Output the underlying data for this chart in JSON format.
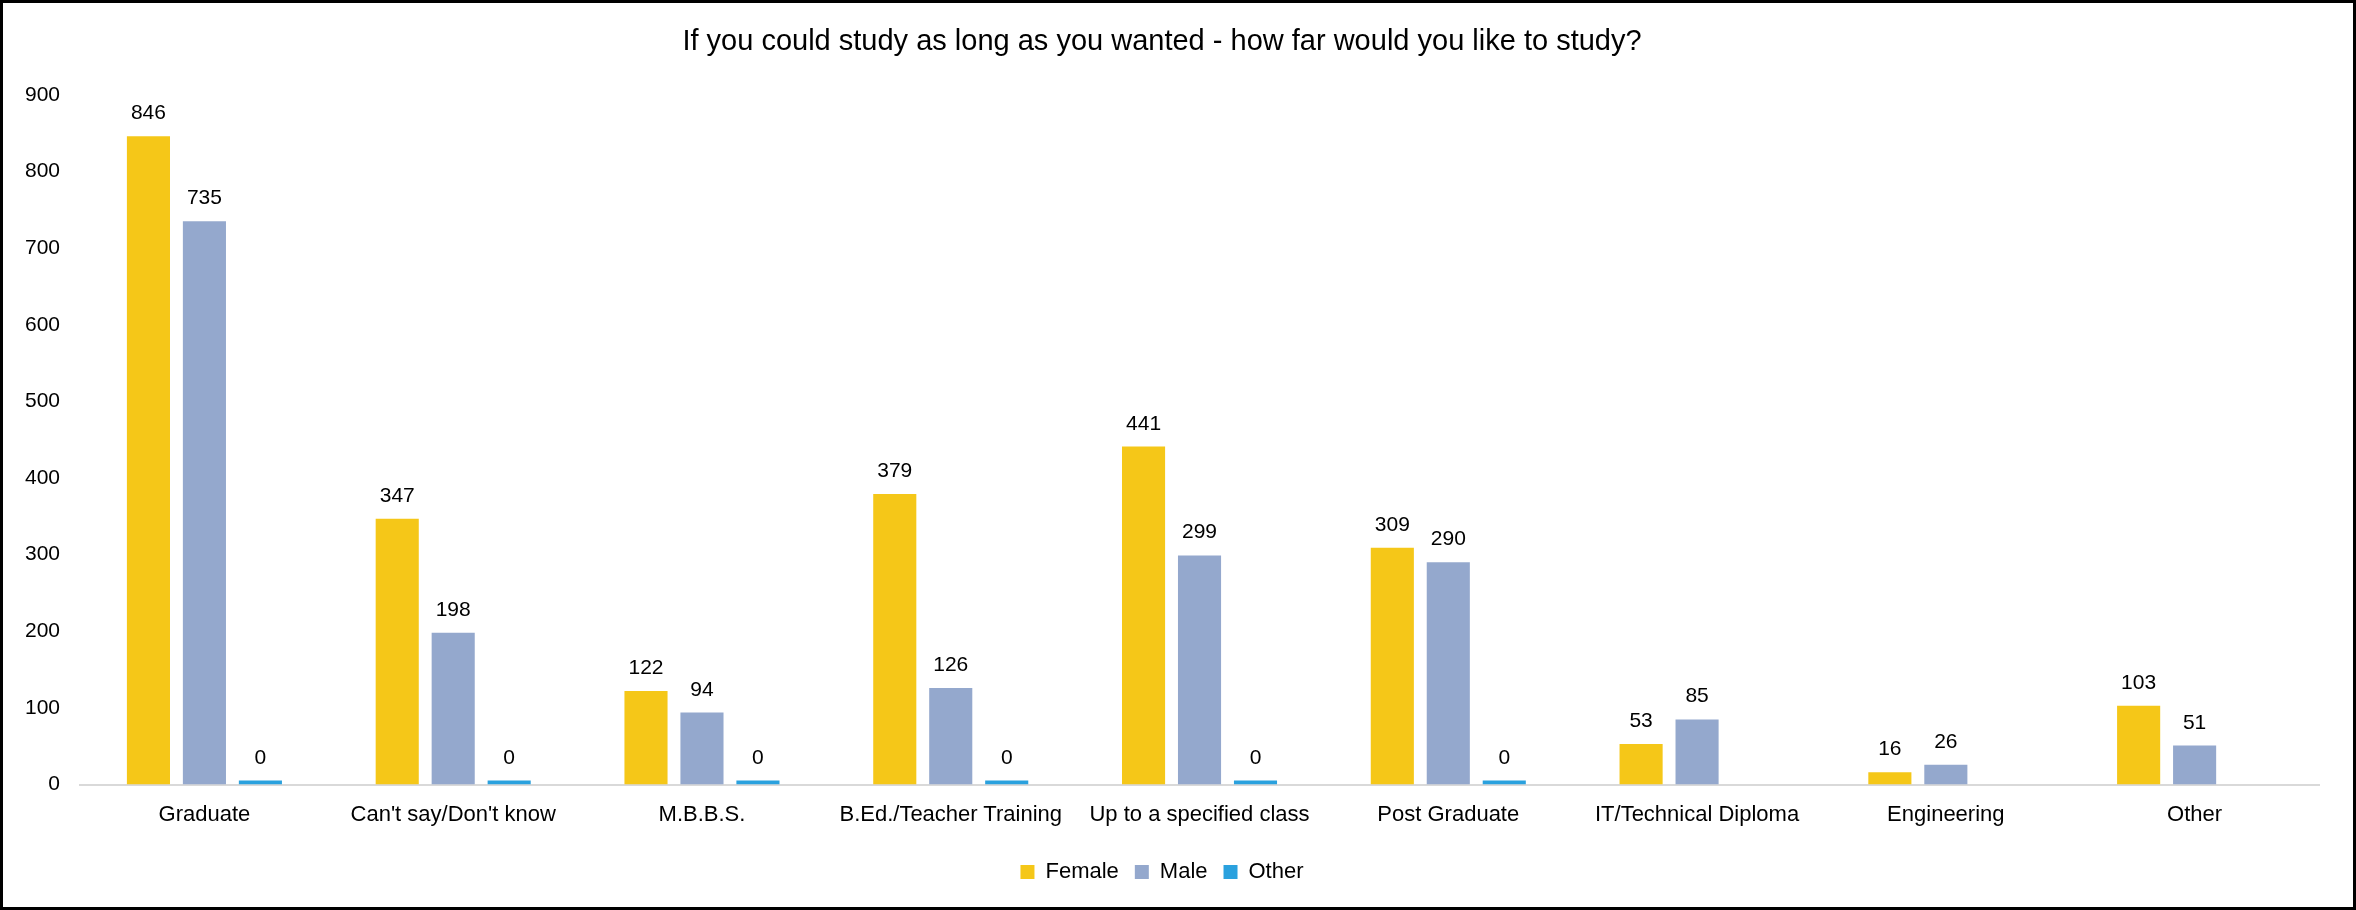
{
  "chart_data": {
    "type": "bar",
    "title": "If you could study as long as you wanted - how far would you like to study?",
    "categories": [
      "Graduate",
      "Can't say/Don't know",
      "M.B.B.S.",
      "B.Ed./Teacher Training",
      "Up to a specified class",
      "Post Graduate",
      "IT/Technical Diploma",
      "Engineering",
      "Other"
    ],
    "series": [
      {
        "name": "Female",
        "color": "#f5c718",
        "values": [
          846,
          347,
          122,
          379,
          441,
          309,
          53,
          16,
          103
        ]
      },
      {
        "name": "Male",
        "color": "#94a8cd",
        "values": [
          735,
          198,
          94,
          126,
          299,
          290,
          85,
          26,
          51
        ]
      },
      {
        "name": "Other",
        "color": "#2aa1de",
        "values": [
          0,
          0,
          0,
          0,
          0,
          0,
          null,
          null,
          null
        ]
      }
    ],
    "ylim": [
      0,
      900
    ],
    "yticks": [
      0,
      100,
      200,
      300,
      400,
      500,
      600,
      700,
      800,
      900
    ],
    "grid": false,
    "legend": "bottom",
    "data_labels": true
  }
}
